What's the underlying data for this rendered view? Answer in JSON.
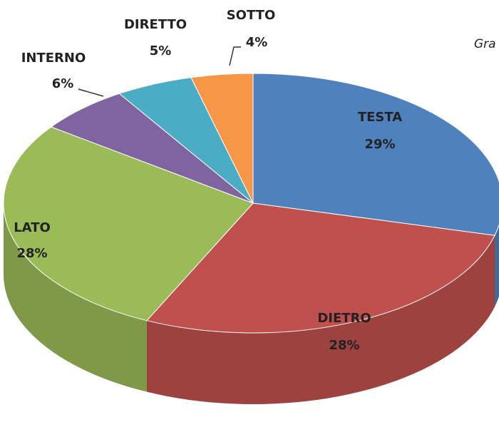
{
  "chart_data": {
    "type": "pie",
    "title": "Gra",
    "categories": [
      "TESTA",
      "DIETRO",
      "LATO",
      "INTERNO",
      "DIRETTO",
      "SOTTO"
    ],
    "values": [
      29,
      28,
      28,
      6,
      5,
      4
    ],
    "value_labels": [
      "29%",
      "28%",
      "28%",
      "6%",
      "5%",
      "4%"
    ],
    "colors": [
      "#4f81bd",
      "#c0504d",
      "#9bbb59",
      "#8064a2",
      "#4bacc6",
      "#f79646"
    ]
  }
}
